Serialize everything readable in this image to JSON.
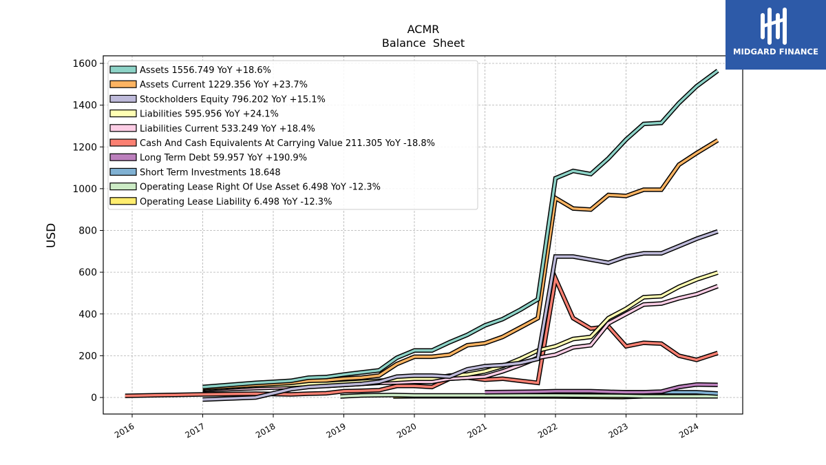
{
  "chart_data": {
    "type": "line",
    "title": "ACMR",
    "subtitle": "Balance  Sheet",
    "ylabel": "USD",
    "xlabel": "",
    "x_range": [
      2015.6,
      2024.65
    ],
    "ylim": [
      -80,
      1650
    ],
    "y_ticks": [
      0,
      200,
      400,
      600,
      800,
      1000,
      1200,
      1400,
      1600
    ],
    "x_ticks": [
      2016,
      2017,
      2018,
      2019,
      2020,
      2021,
      2022,
      2023,
      2024
    ],
    "grid": true,
    "legend_position": "top-left",
    "series": [
      {
        "name": "Assets",
        "label": "Assets  1556.749 YoY +18.6%",
        "color": "#8dd3c7",
        "x": [
          2017.0,
          2017.75,
          2018.25,
          2018.5,
          2018.75,
          2019.0,
          2019.25,
          2019.5,
          2019.75,
          2020.0,
          2020.25,
          2020.5,
          2020.75,
          2021.0,
          2021.25,
          2021.5,
          2021.75,
          2022.0,
          2022.25,
          2022.5,
          2022.75,
          2023.0,
          2023.25,
          2023.5,
          2023.75,
          2024.0,
          2024.3
        ],
        "values": [
          50,
          70,
          80,
          95,
          98,
          110,
          120,
          130,
          190,
          225,
          225,
          265,
          300,
          345,
          375,
          420,
          470,
          1050,
          1085,
          1070,
          1145,
          1235,
          1310,
          1315,
          1410,
          1490,
          1565
        ]
      },
      {
        "name": "Assets Current",
        "label": "Assets Current  1229.356 YoY +23.7%",
        "color": "#fdb462",
        "x": [
          2017.0,
          2017.75,
          2018.25,
          2018.5,
          2018.75,
          2019.0,
          2019.25,
          2019.5,
          2019.75,
          2020.0,
          2020.25,
          2020.5,
          2020.75,
          2021.0,
          2021.25,
          2021.5,
          2021.75,
          2022.0,
          2022.25,
          2022.5,
          2022.75,
          2023.0,
          2023.25,
          2023.5,
          2023.75,
          2024.0,
          2024.3
        ],
        "values": [
          45,
          60,
          70,
          80,
          82,
          90,
          95,
          105,
          160,
          195,
          195,
          205,
          250,
          260,
          290,
          335,
          380,
          955,
          905,
          900,
          970,
          965,
          995,
          995,
          1115,
          1170,
          1232
        ]
      },
      {
        "name": "Stockholders Equity",
        "label": "Stockholders Equity  796.202 YoY +15.1%",
        "color": "#bebada",
        "x": [
          2017.0,
          2017.75,
          2018.25,
          2018.5,
          2018.75,
          2019.0,
          2019.25,
          2019.5,
          2019.75,
          2020.0,
          2020.25,
          2020.5,
          2020.75,
          2021.0,
          2021.25,
          2021.5,
          2021.75,
          2022.0,
          2022.25,
          2022.5,
          2022.75,
          2023.0,
          2023.25,
          2023.5,
          2023.75,
          2024.0,
          2024.3
        ],
        "values": [
          -10,
          0,
          40,
          50,
          55,
          60,
          65,
          75,
          100,
          105,
          105,
          100,
          135,
          150,
          155,
          165,
          185,
          675,
          675,
          660,
          645,
          675,
          690,
          690,
          725,
          760,
          795
        ]
      },
      {
        "name": "Liabilities",
        "label": "Liabilities  595.956 YoY +24.1%",
        "color": "#ffffb3",
        "x": [
          2017.0,
          2017.75,
          2018.25,
          2018.5,
          2018.75,
          2019.0,
          2019.25,
          2019.5,
          2019.75,
          2020.0,
          2020.25,
          2020.5,
          2020.75,
          2021.0,
          2021.25,
          2021.5,
          2021.75,
          2022.0,
          2022.25,
          2022.5,
          2022.75,
          2023.0,
          2023.25,
          2023.5,
          2023.75,
          2024.0,
          2024.3
        ],
        "values": [
          40,
          55,
          60,
          65,
          65,
          70,
          75,
          80,
          85,
          90,
          90,
          105,
          110,
          125,
          150,
          185,
          225,
          245,
          280,
          290,
          380,
          425,
          480,
          485,
          530,
          565,
          598
        ]
      },
      {
        "name": "Liabilities Current",
        "label": "Liabilities Current  533.249 YoY +18.4%",
        "color": "#fccde5",
        "x": [
          2017.0,
          2017.75,
          2018.25,
          2018.5,
          2018.75,
          2019.0,
          2019.25,
          2019.5,
          2019.75,
          2020.0,
          2020.25,
          2020.5,
          2020.75,
          2021.0,
          2021.25,
          2021.5,
          2021.75,
          2022.0,
          2022.25,
          2022.5,
          2022.75,
          2023.0,
          2023.25,
          2023.5,
          2023.75,
          2024.0,
          2024.3
        ],
        "values": [
          35,
          45,
          50,
          55,
          55,
          60,
          65,
          70,
          72,
          75,
          75,
          90,
          95,
          100,
          125,
          155,
          190,
          205,
          240,
          250,
          355,
          400,
          445,
          450,
          475,
          495,
          533
        ]
      },
      {
        "name": "Cash And Cash Equivalents At Carrying Value",
        "label": "Cash And Cash Equivalents At Carrying Value  211.305 YoY -18.8%",
        "color": "#fb8072",
        "x": [
          2015.9,
          2016.5,
          2017.0,
          2017.75,
          2018.25,
          2018.5,
          2018.75,
          2019.0,
          2019.25,
          2019.5,
          2019.75,
          2020.0,
          2020.25,
          2020.5,
          2020.75,
          2021.0,
          2021.25,
          2021.5,
          2021.75,
          2022.0,
          2022.25,
          2022.5,
          2022.75,
          2023.0,
          2023.25,
          2023.5,
          2023.75,
          2024.0,
          2024.3
        ],
        "values": [
          8,
          12,
          15,
          18,
          15,
          18,
          20,
          30,
          32,
          35,
          55,
          55,
          50,
          90,
          95,
          85,
          90,
          80,
          70,
          570,
          380,
          330,
          340,
          245,
          262,
          258,
          200,
          180,
          213
        ]
      },
      {
        "name": "Long Term Debt",
        "label": "Long Term Debt  59.957 YoY +190.9%",
        "color": "#bc80bd",
        "x": [
          2021.0,
          2021.75,
          2022.0,
          2022.5,
          2022.75,
          2023.0,
          2023.25,
          2023.5,
          2023.75,
          2024.0,
          2024.3
        ],
        "values": [
          25,
          28,
          30,
          30,
          27,
          25,
          25,
          28,
          50,
          62,
          60
        ]
      },
      {
        "name": "Short Term Investments",
        "label": "Short Term Investments  18.648",
        "color": "#80b1d3",
        "x": [
          2022.95,
          2023.25,
          2023.75,
          2024.0,
          2024.3
        ],
        "values": [
          25,
          25,
          25,
          25,
          19
        ]
      },
      {
        "name": "Operating Lease Right Of Use Asset",
        "label": "Operating Lease Right Of Use Asset  6.498 YoY -12.3%",
        "color": "#ccebc5",
        "x": [
          2018.95,
          2019.25,
          2019.7,
          2020.0,
          2021.0,
          2022.0,
          2022.95,
          2023.25,
          2024.3
        ],
        "values": [
          5,
          10,
          12,
          10,
          10,
          10,
          8,
          6,
          6
        ]
      },
      {
        "name": "Operating Lease Liability",
        "label": "Operating Lease Liability  6.498 YoY -12.3%",
        "color": "#ffed6f",
        "x": [
          2019.7,
          2020.0,
          2021.0,
          2022.0,
          2022.95,
          2023.25,
          2024.3
        ],
        "values": [
          5,
          6,
          6,
          5,
          2,
          6,
          6
        ]
      }
    ]
  },
  "logo": {
    "name": "MIDGARD FINANCE",
    "bg_color": "#2d5aa8"
  }
}
